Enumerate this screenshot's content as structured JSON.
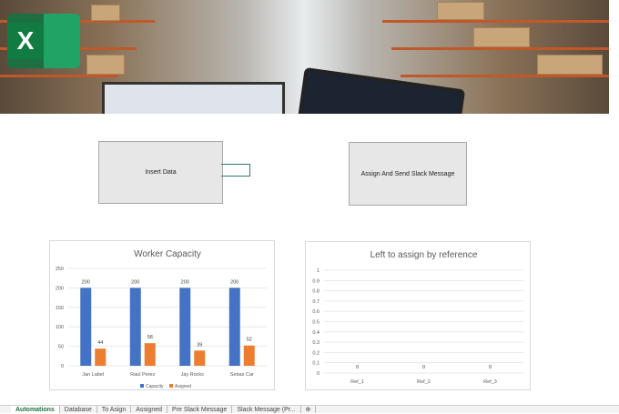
{
  "banner": {
    "logo_letter": "X"
  },
  "shapes": {
    "insert_data": "Insert Data",
    "assign_send": "Assign And Send Slack Message"
  },
  "colors": {
    "capacity": "#4472c4",
    "assigned": "#ed7d31",
    "excel_green": "#1d6f42"
  },
  "chart_data": [
    {
      "type": "bar",
      "title": "Worker Capacity",
      "categories": [
        "Jan Label",
        "Raul Perez",
        "Jay Rocks",
        "Sebas Car"
      ],
      "series": [
        {
          "name": "Capacity",
          "values": [
            200,
            200,
            200,
            200
          ]
        },
        {
          "name": "Asigned",
          "values": [
            44,
            58,
            39,
            52
          ]
        }
      ],
      "ylim": [
        0,
        250
      ],
      "yticks": [
        "0",
        "50",
        "100",
        "150",
        "200",
        "250"
      ],
      "grid": true,
      "legend": "bottom"
    },
    {
      "type": "bar",
      "title": "Left to assign by reference",
      "categories": [
        "Ref_1",
        "Ref_2",
        "Ref_3"
      ],
      "series": [
        {
          "values": [
            0,
            0,
            0
          ]
        }
      ],
      "ylim": [
        0,
        1
      ],
      "yticks": [
        "0",
        "0.1",
        "0.2",
        "0.3",
        "0.4",
        "0.5",
        "0.6",
        "0.7",
        "0.8",
        "0.9",
        "1"
      ],
      "grid": true
    }
  ],
  "sheet_tabs": [
    {
      "label": "Automations",
      "active": true
    },
    {
      "label": "Database"
    },
    {
      "label": "To Asign"
    },
    {
      "label": "Assigned"
    },
    {
      "label": "Pre Slack Message"
    },
    {
      "label": "Slack Message (Pr..."
    }
  ],
  "add_sheet": "⊕"
}
